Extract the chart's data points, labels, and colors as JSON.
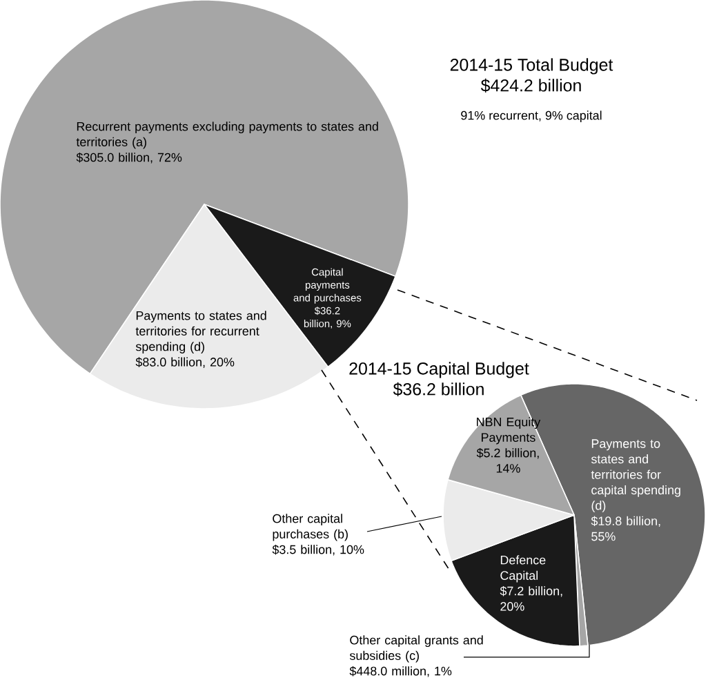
{
  "chart_data": [
    {
      "type": "pie",
      "title": "2014-15 Total Budget",
      "subtitle": "$424.2 billion",
      "annotations": [
        "91% recurrent, 9% capital"
      ],
      "categories": [
        "Recurrent payments excluding payments to states and territories (a)",
        "Capital payments and purchases",
        "Payments to states and territories for recurrent spending (d)"
      ],
      "values": [
        72,
        9,
        20
      ],
      "value_labels": [
        "$305.0 billion, 72%",
        "$36.2 billion, 9%",
        "$83.0 billion, 20%"
      ],
      "colors": [
        "#a6a6a6",
        "#1a1a1a",
        "#ebebeb"
      ]
    },
    {
      "type": "pie",
      "title": "2014-15 Capital Budget",
      "subtitle": "$36.2 billion",
      "categories": [
        "Payments to states and territories for capital spending (d)",
        "Other capital grants and subsidies (c)",
        "Defence Capital",
        "Other capital purchases (b)",
        "NBN Equity Payments"
      ],
      "values": [
        55,
        1,
        20,
        10,
        14
      ],
      "value_labels": [
        "$19.8 billion, 55%",
        "$448.0 million, 1%",
        "$7.2 billion, 20%",
        "$3.5 billion, 10%",
        "$5.2 billion, 14%"
      ],
      "colors": [
        "#666666",
        "#a6a6a6",
        "#1a1a1a",
        "#ebebeb",
        "#a6a6a6"
      ]
    }
  ]
}
